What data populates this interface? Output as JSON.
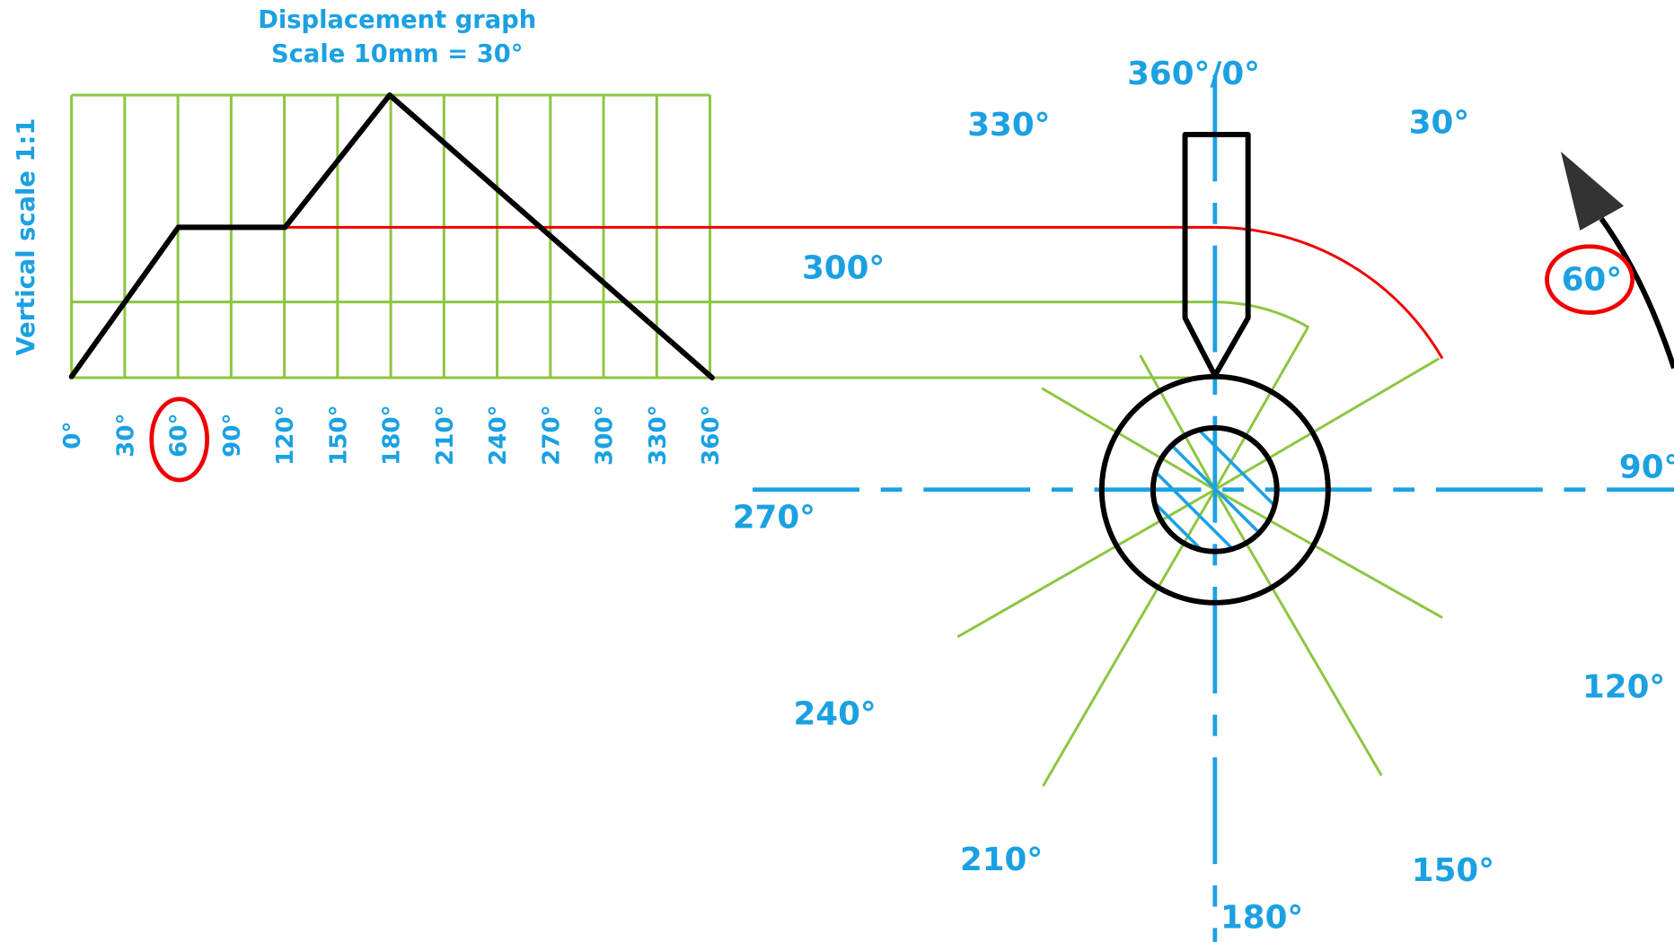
{
  "graph": {
    "title": "Displacement graph",
    "subtitle": "Scale 10mm = 30°",
    "vertical_label": "Vertical scale 1:1",
    "ticks": [
      "0°",
      "30°",
      "60°",
      "90°",
      "120°",
      "150°",
      "180°",
      "210°",
      "240°",
      "270°",
      "300°",
      "330°",
      "360°"
    ]
  },
  "angles": [
    "360°/0°",
    "330°",
    "30°",
    "300°",
    "60°",
    "270°",
    "90°",
    "240°",
    "120°",
    "210°",
    "150°",
    "180°"
  ]
}
